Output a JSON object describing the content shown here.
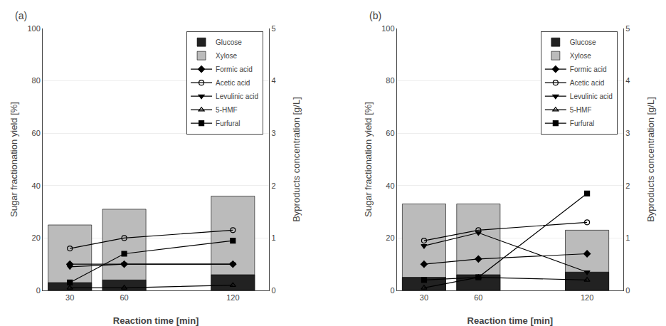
{
  "chart_data": [
    {
      "type": "bar",
      "label": "(a)",
      "x_label": "Reaction time [min]",
      "y_label": "Sugar fractionation yield [%]",
      "y2_label": "Byproducts concentration [g/L]",
      "x": [
        30,
        60,
        120
      ],
      "xlim": [
        15,
        140
      ],
      "xticks": [
        30,
        60,
        120
      ],
      "ylim": [
        0,
        100
      ],
      "yticks": [
        0,
        20,
        40,
        60,
        80,
        100
      ],
      "y2lim": [
        0,
        5
      ],
      "y2ticks": [
        0,
        1,
        2,
        3,
        4,
        5
      ],
      "stacked": false,
      "legend": "upper right",
      "series": [
        {
          "name": "Glucose",
          "type": "bar",
          "color": "#222222",
          "values": [
            3,
            4,
            6
          ]
        },
        {
          "name": "Xylose",
          "type": "bar",
          "color": "#bbbbbb",
          "values": [
            25,
            31,
            36
          ]
        },
        {
          "name": "Formic acid",
          "type": "line",
          "color": "#000000",
          "marker": "diamond",
          "values": [
            10,
            10,
            10
          ]
        },
        {
          "name": "Acetic acid",
          "type": "line",
          "color": "#000000",
          "marker": "circle-open",
          "values": [
            16,
            20,
            23
          ]
        },
        {
          "name": "Levulinic acid",
          "type": "line",
          "color": "#000000",
          "marker": "triangle-down",
          "values": [
            9,
            10,
            10
          ]
        },
        {
          "name": "5-HMF",
          "type": "line",
          "color": "#000000",
          "marker": "triangle-up-open",
          "values": [
            1,
            1,
            2
          ]
        },
        {
          "name": "Furfural",
          "type": "line",
          "color": "#000000",
          "marker": "square",
          "values": [
            3,
            14,
            19
          ]
        }
      ]
    },
    {
      "type": "bar",
      "label": "(b)",
      "x_label": "Reaction time [min]",
      "y_label": "Sugar fractionation yield [%]",
      "y2_label": "Byproducts concentration [g/L]",
      "x": [
        30,
        60,
        120
      ],
      "xlim": [
        15,
        140
      ],
      "xticks": [
        30,
        60,
        120
      ],
      "ylim": [
        0,
        100
      ],
      "yticks": [
        0,
        20,
        40,
        60,
        80,
        100
      ],
      "y2lim": [
        0,
        5
      ],
      "y2ticks": [
        0,
        1,
        2,
        3,
        4,
        5
      ],
      "stacked": false,
      "legend": "upper right",
      "series": [
        {
          "name": "Glucose",
          "type": "bar",
          "color": "#222222",
          "values": [
            5,
            6,
            7
          ]
        },
        {
          "name": "Xylose",
          "type": "bar",
          "color": "#bbbbbb",
          "values": [
            33,
            33,
            23
          ]
        },
        {
          "name": "Formic acid",
          "type": "line",
          "color": "#000000",
          "marker": "diamond",
          "values": [
            10,
            12,
            14
          ]
        },
        {
          "name": "Acetic acid",
          "type": "line",
          "color": "#000000",
          "marker": "circle-open",
          "values": [
            19,
            23,
            26
          ]
        },
        {
          "name": "Levulinic acid",
          "type": "line",
          "color": "#000000",
          "marker": "triangle-down",
          "values": [
            17,
            22,
            7
          ]
        },
        {
          "name": "5-HMF",
          "type": "line",
          "color": "#000000",
          "marker": "triangle-up-open",
          "values": [
            1,
            5,
            4
          ]
        },
        {
          "name": "Furfural",
          "type": "line",
          "color": "#000000",
          "marker": "square",
          "values": [
            4,
            5,
            37
          ]
        }
      ]
    }
  ]
}
